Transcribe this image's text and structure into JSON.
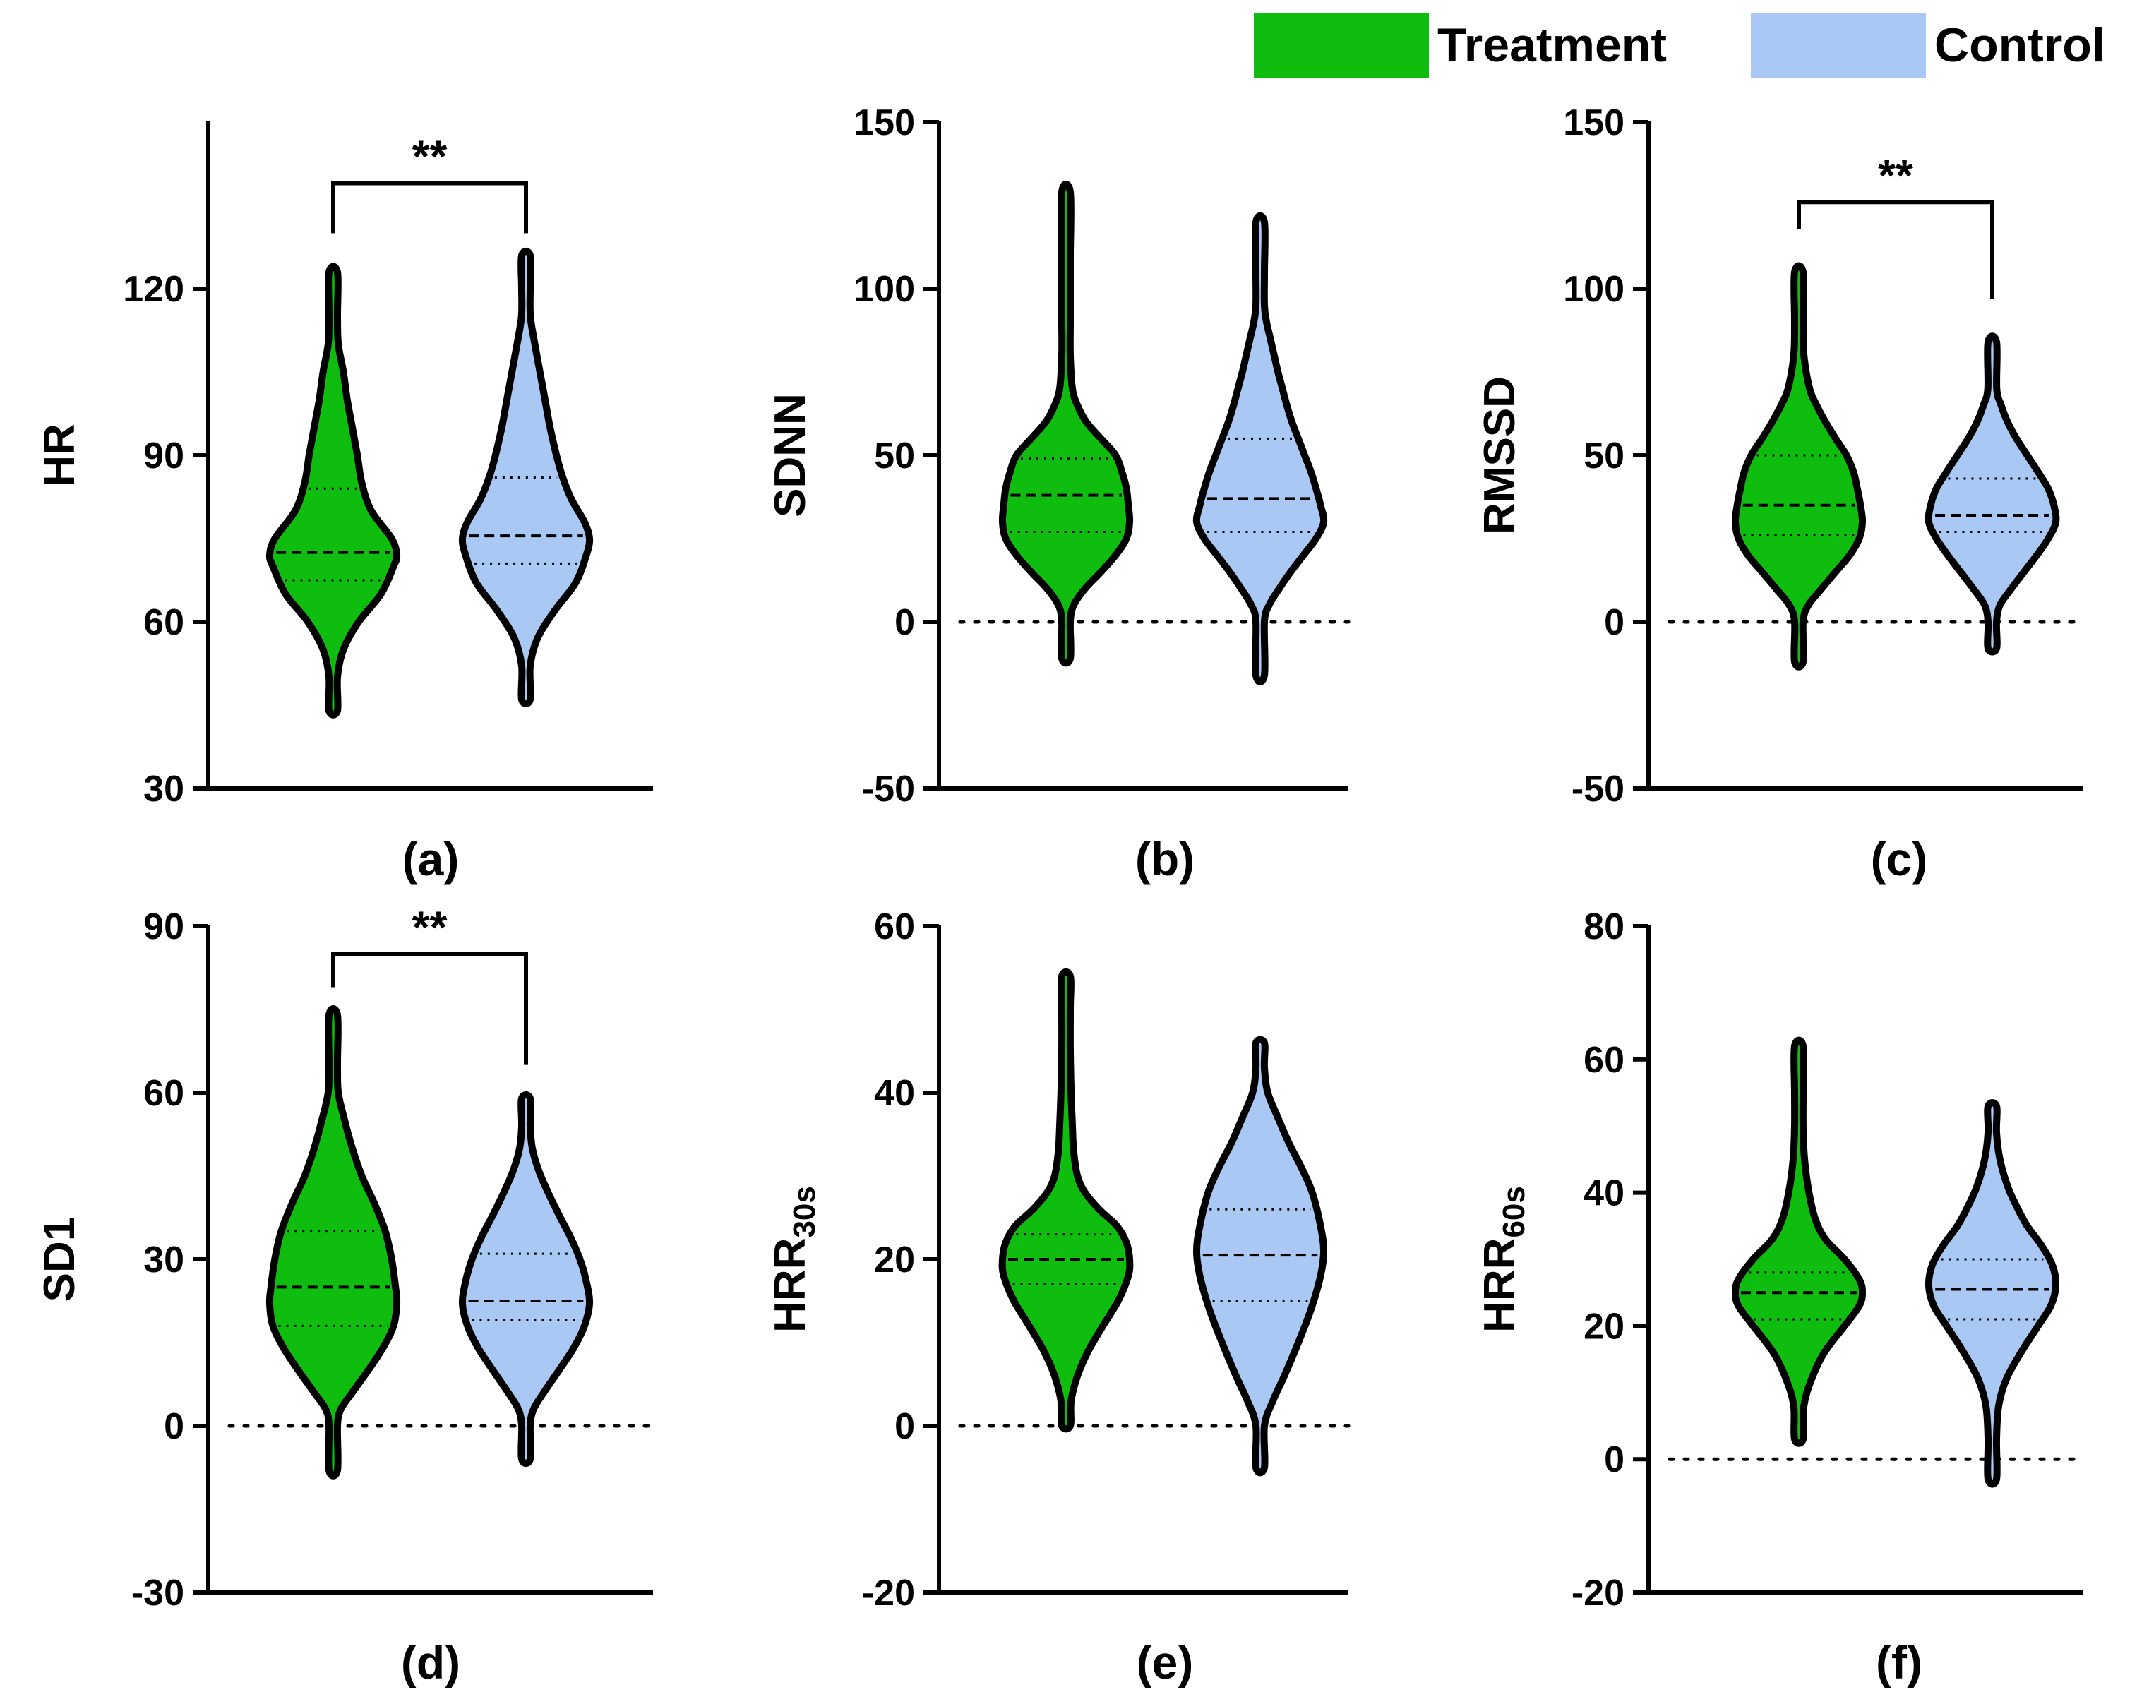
{
  "legend": {
    "treatment_label": "Treatment",
    "control_label": "Control",
    "treatment_color": "#0fbd0f",
    "control_color": "#a9c9f4"
  },
  "chart_data": [
    {
      "type": "violin",
      "panel_label": "(a)",
      "ylabel": "HR",
      "subscript": "",
      "ylim": [
        30,
        150
      ],
      "yticks": [
        30,
        60,
        90,
        120
      ],
      "zero_line": false,
      "significance": "**",
      "bracket_top": 139,
      "bracket_left_bottom": 130,
      "bracket_right_bottom": 130,
      "series": [
        {
          "name": "Treatment",
          "min": 44,
          "max": 123,
          "median": 72.5,
          "q1": 67.5,
          "q3": 84,
          "profile": [
            [
              44,
              0.02
            ],
            [
              50,
              0.05
            ],
            [
              55,
              0.16
            ],
            [
              60,
              0.4
            ],
            [
              65,
              0.75
            ],
            [
              70,
              0.95
            ],
            [
              72,
              1.0
            ],
            [
              75,
              0.92
            ],
            [
              80,
              0.6
            ],
            [
              85,
              0.45
            ],
            [
              90,
              0.38
            ],
            [
              95,
              0.3
            ],
            [
              100,
              0.22
            ],
            [
              105,
              0.16
            ],
            [
              110,
              0.08
            ],
            [
              115,
              0.04
            ],
            [
              123,
              0.02
            ]
          ]
        },
        {
          "name": "Control",
          "min": 46,
          "max": 126,
          "median": 75.5,
          "q1": 70.5,
          "q3": 86,
          "profile": [
            [
              46,
              0.02
            ],
            [
              52,
              0.05
            ],
            [
              57,
              0.18
            ],
            [
              62,
              0.45
            ],
            [
              67,
              0.78
            ],
            [
              72,
              0.95
            ],
            [
              75,
              1.0
            ],
            [
              78,
              0.92
            ],
            [
              82,
              0.72
            ],
            [
              86,
              0.58
            ],
            [
              90,
              0.48
            ],
            [
              95,
              0.38
            ],
            [
              100,
              0.3
            ],
            [
              105,
              0.22
            ],
            [
              110,
              0.14
            ],
            [
              115,
              0.07
            ],
            [
              120,
              0.04
            ],
            [
              126,
              0.02
            ]
          ]
        }
      ]
    },
    {
      "type": "violin",
      "panel_label": "(b)",
      "ylabel": "SDNN",
      "subscript": "",
      "ylim": [
        -50,
        150
      ],
      "yticks": [
        -50,
        0,
        50,
        100,
        150
      ],
      "zero_line": true,
      "significance": "",
      "series": [
        {
          "name": "Treatment",
          "min": -11,
          "max": 129,
          "median": 38,
          "q1": 27,
          "q3": 49,
          "profile": [
            [
              -11,
              0.02
            ],
            [
              0,
              0.04
            ],
            [
              5,
              0.12
            ],
            [
              10,
              0.3
            ],
            [
              15,
              0.55
            ],
            [
              20,
              0.78
            ],
            [
              25,
              0.95
            ],
            [
              30,
              1.0
            ],
            [
              35,
              0.98
            ],
            [
              40,
              0.95
            ],
            [
              45,
              0.88
            ],
            [
              50,
              0.78
            ],
            [
              55,
              0.55
            ],
            [
              60,
              0.32
            ],
            [
              65,
              0.18
            ],
            [
              70,
              0.1
            ],
            [
              80,
              0.06
            ],
            [
              90,
              0.05
            ],
            [
              100,
              0.05
            ],
            [
              110,
              0.03
            ],
            [
              129,
              0.02
            ]
          ]
        },
        {
          "name": "Control",
          "min": -16,
          "max": 120,
          "median": 37,
          "q1": 27,
          "q3": 55,
          "profile": [
            [
              -16,
              0.02
            ],
            [
              0,
              0.04
            ],
            [
              5,
              0.14
            ],
            [
              10,
              0.3
            ],
            [
              15,
              0.48
            ],
            [
              20,
              0.68
            ],
            [
              25,
              0.88
            ],
            [
              30,
              1.0
            ],
            [
              35,
              0.95
            ],
            [
              40,
              0.88
            ],
            [
              45,
              0.8
            ],
            [
              50,
              0.7
            ],
            [
              55,
              0.6
            ],
            [
              60,
              0.5
            ],
            [
              65,
              0.42
            ],
            [
              70,
              0.35
            ],
            [
              75,
              0.28
            ],
            [
              80,
              0.22
            ],
            [
              85,
              0.16
            ],
            [
              90,
              0.1
            ],
            [
              95,
              0.06
            ],
            [
              105,
              0.03
            ],
            [
              120,
              0.02
            ]
          ]
        }
      ]
    },
    {
      "type": "violin",
      "panel_label": "(c)",
      "ylabel": "RMSSD",
      "subscript": "",
      "ylim": [
        -50,
        150
      ],
      "yticks": [
        -50,
        0,
        50,
        100,
        150
      ],
      "zero_line": true,
      "significance": "**",
      "bracket_top": 126,
      "bracket_left_bottom": 118,
      "bracket_right_bottom": 97,
      "series": [
        {
          "name": "Treatment",
          "min": -12,
          "max": 105,
          "median": 35,
          "q1": 26,
          "q3": 50,
          "profile": [
            [
              -12,
              0.02
            ],
            [
              0,
              0.04
            ],
            [
              5,
              0.15
            ],
            [
              10,
              0.36
            ],
            [
              15,
              0.58
            ],
            [
              20,
              0.8
            ],
            [
              25,
              0.95
            ],
            [
              30,
              1.0
            ],
            [
              35,
              0.97
            ],
            [
              40,
              0.92
            ],
            [
              45,
              0.86
            ],
            [
              50,
              0.75
            ],
            [
              55,
              0.58
            ],
            [
              60,
              0.42
            ],
            [
              65,
              0.28
            ],
            [
              70,
              0.17
            ],
            [
              80,
              0.08
            ],
            [
              90,
              0.04
            ],
            [
              105,
              0.02
            ]
          ]
        },
        {
          "name": "Control",
          "min": -8,
          "max": 84,
          "median": 32,
          "q1": 27,
          "q3": 43,
          "profile": [
            [
              -8,
              0.02
            ],
            [
              0,
              0.04
            ],
            [
              5,
              0.12
            ],
            [
              10,
              0.3
            ],
            [
              15,
              0.5
            ],
            [
              20,
              0.7
            ],
            [
              25,
              0.88
            ],
            [
              30,
              1.0
            ],
            [
              35,
              0.97
            ],
            [
              40,
              0.88
            ],
            [
              45,
              0.72
            ],
            [
              50,
              0.55
            ],
            [
              55,
              0.38
            ],
            [
              60,
              0.24
            ],
            [
              65,
              0.14
            ],
            [
              70,
              0.07
            ],
            [
              84,
              0.02
            ]
          ]
        }
      ]
    },
    {
      "type": "violin",
      "panel_label": "(d)",
      "ylabel": "SD1",
      "subscript": "",
      "ylim": [
        -30,
        90
      ],
      "yticks": [
        -30,
        0,
        30,
        60,
        90
      ],
      "zero_line": true,
      "significance": "**",
      "bracket_top": 85,
      "bracket_left_bottom": 79,
      "bracket_right_bottom": 65,
      "series": [
        {
          "name": "Treatment",
          "min": -8,
          "max": 74,
          "median": 25,
          "q1": 18,
          "q3": 35,
          "profile": [
            [
              -8,
              0.02
            ],
            [
              0,
              0.04
            ],
            [
              3,
              0.12
            ],
            [
              6,
              0.3
            ],
            [
              10,
              0.55
            ],
            [
              14,
              0.78
            ],
            [
              18,
              0.95
            ],
            [
              22,
              1.0
            ],
            [
              25,
              0.98
            ],
            [
              30,
              0.92
            ],
            [
              35,
              0.82
            ],
            [
              40,
              0.65
            ],
            [
              45,
              0.45
            ],
            [
              50,
              0.3
            ],
            [
              55,
              0.18
            ],
            [
              60,
              0.08
            ],
            [
              65,
              0.04
            ],
            [
              74,
              0.02
            ]
          ]
        },
        {
          "name": "Control",
          "min": -6,
          "max": 59,
          "median": 22.5,
          "q1": 19,
          "q3": 31,
          "profile": [
            [
              -6,
              0.02
            ],
            [
              0,
              0.04
            ],
            [
              3,
              0.12
            ],
            [
              6,
              0.28
            ],
            [
              10,
              0.52
            ],
            [
              14,
              0.75
            ],
            [
              18,
              0.92
            ],
            [
              22,
              1.0
            ],
            [
              26,
              0.95
            ],
            [
              30,
              0.85
            ],
            [
              34,
              0.7
            ],
            [
              38,
              0.52
            ],
            [
              42,
              0.35
            ],
            [
              46,
              0.2
            ],
            [
              50,
              0.1
            ],
            [
              54,
              0.05
            ],
            [
              59,
              0.02
            ]
          ]
        }
      ]
    },
    {
      "type": "violin",
      "panel_label": "(e)",
      "ylabel": "HRR",
      "subscript": "30s",
      "ylim": [
        -20,
        60
      ],
      "yticks": [
        -20,
        0,
        20,
        40,
        60
      ],
      "zero_line": true,
      "significance": "",
      "series": [
        {
          "name": "Treatment",
          "min": 0,
          "max": 54,
          "median": 20,
          "q1": 17,
          "q3": 23,
          "profile": [
            [
              0,
              0.02
            ],
            [
              3,
              0.08
            ],
            [
              6,
              0.18
            ],
            [
              9,
              0.35
            ],
            [
              12,
              0.58
            ],
            [
              15,
              0.82
            ],
            [
              18,
              0.98
            ],
            [
              20,
              1.0
            ],
            [
              22,
              0.95
            ],
            [
              24,
              0.8
            ],
            [
              26,
              0.52
            ],
            [
              28,
              0.3
            ],
            [
              30,
              0.18
            ],
            [
              33,
              0.12
            ],
            [
              36,
              0.1
            ],
            [
              40,
              0.08
            ],
            [
              45,
              0.06
            ],
            [
              50,
              0.03
            ],
            [
              54,
              0.02
            ]
          ]
        },
        {
          "name": "Control",
          "min": -5,
          "max": 46,
          "median": 20.5,
          "q1": 15,
          "q3": 26,
          "profile": [
            [
              -5,
              0.02
            ],
            [
              0,
              0.06
            ],
            [
              3,
              0.2
            ],
            [
              6,
              0.38
            ],
            [
              10,
              0.6
            ],
            [
              14,
              0.8
            ],
            [
              18,
              0.95
            ],
            [
              21,
              1.0
            ],
            [
              24,
              0.95
            ],
            [
              28,
              0.82
            ],
            [
              31,
              0.65
            ],
            [
              34,
              0.45
            ],
            [
              37,
              0.28
            ],
            [
              40,
              0.12
            ],
            [
              43,
              0.05
            ],
            [
              46,
              0.02
            ]
          ]
        }
      ]
    },
    {
      "type": "violin",
      "panel_label": "(f)",
      "ylabel": "HRR",
      "subscript": "60s",
      "ylim": [
        -20,
        80
      ],
      "yticks": [
        -20,
        0,
        20,
        40,
        60,
        80
      ],
      "zero_line": true,
      "significance": "",
      "series": [
        {
          "name": "Treatment",
          "min": 3,
          "max": 62,
          "median": 25,
          "q1": 21,
          "q3": 28,
          "profile": [
            [
              3,
              0.02
            ],
            [
              8,
              0.08
            ],
            [
              12,
              0.2
            ],
            [
              16,
              0.4
            ],
            [
              20,
              0.72
            ],
            [
              23,
              0.95
            ],
            [
              25,
              1.0
            ],
            [
              27,
              0.95
            ],
            [
              30,
              0.72
            ],
            [
              33,
              0.42
            ],
            [
              36,
              0.26
            ],
            [
              40,
              0.16
            ],
            [
              45,
              0.09
            ],
            [
              50,
              0.06
            ],
            [
              55,
              0.04
            ],
            [
              62,
              0.02
            ]
          ]
        },
        {
          "name": "Control",
          "min": -3,
          "max": 53,
          "median": 25.5,
          "q1": 21,
          "q3": 30,
          "profile": [
            [
              -3,
              0.02
            ],
            [
              3,
              0.05
            ],
            [
              8,
              0.1
            ],
            [
              12,
              0.22
            ],
            [
              16,
              0.45
            ],
            [
              20,
              0.72
            ],
            [
              23,
              0.92
            ],
            [
              26,
              1.0
            ],
            [
              29,
              0.95
            ],
            [
              32,
              0.78
            ],
            [
              35,
              0.55
            ],
            [
              38,
              0.38
            ],
            [
              41,
              0.24
            ],
            [
              45,
              0.12
            ],
            [
              49,
              0.06
            ],
            [
              53,
              0.02
            ]
          ]
        }
      ]
    }
  ]
}
